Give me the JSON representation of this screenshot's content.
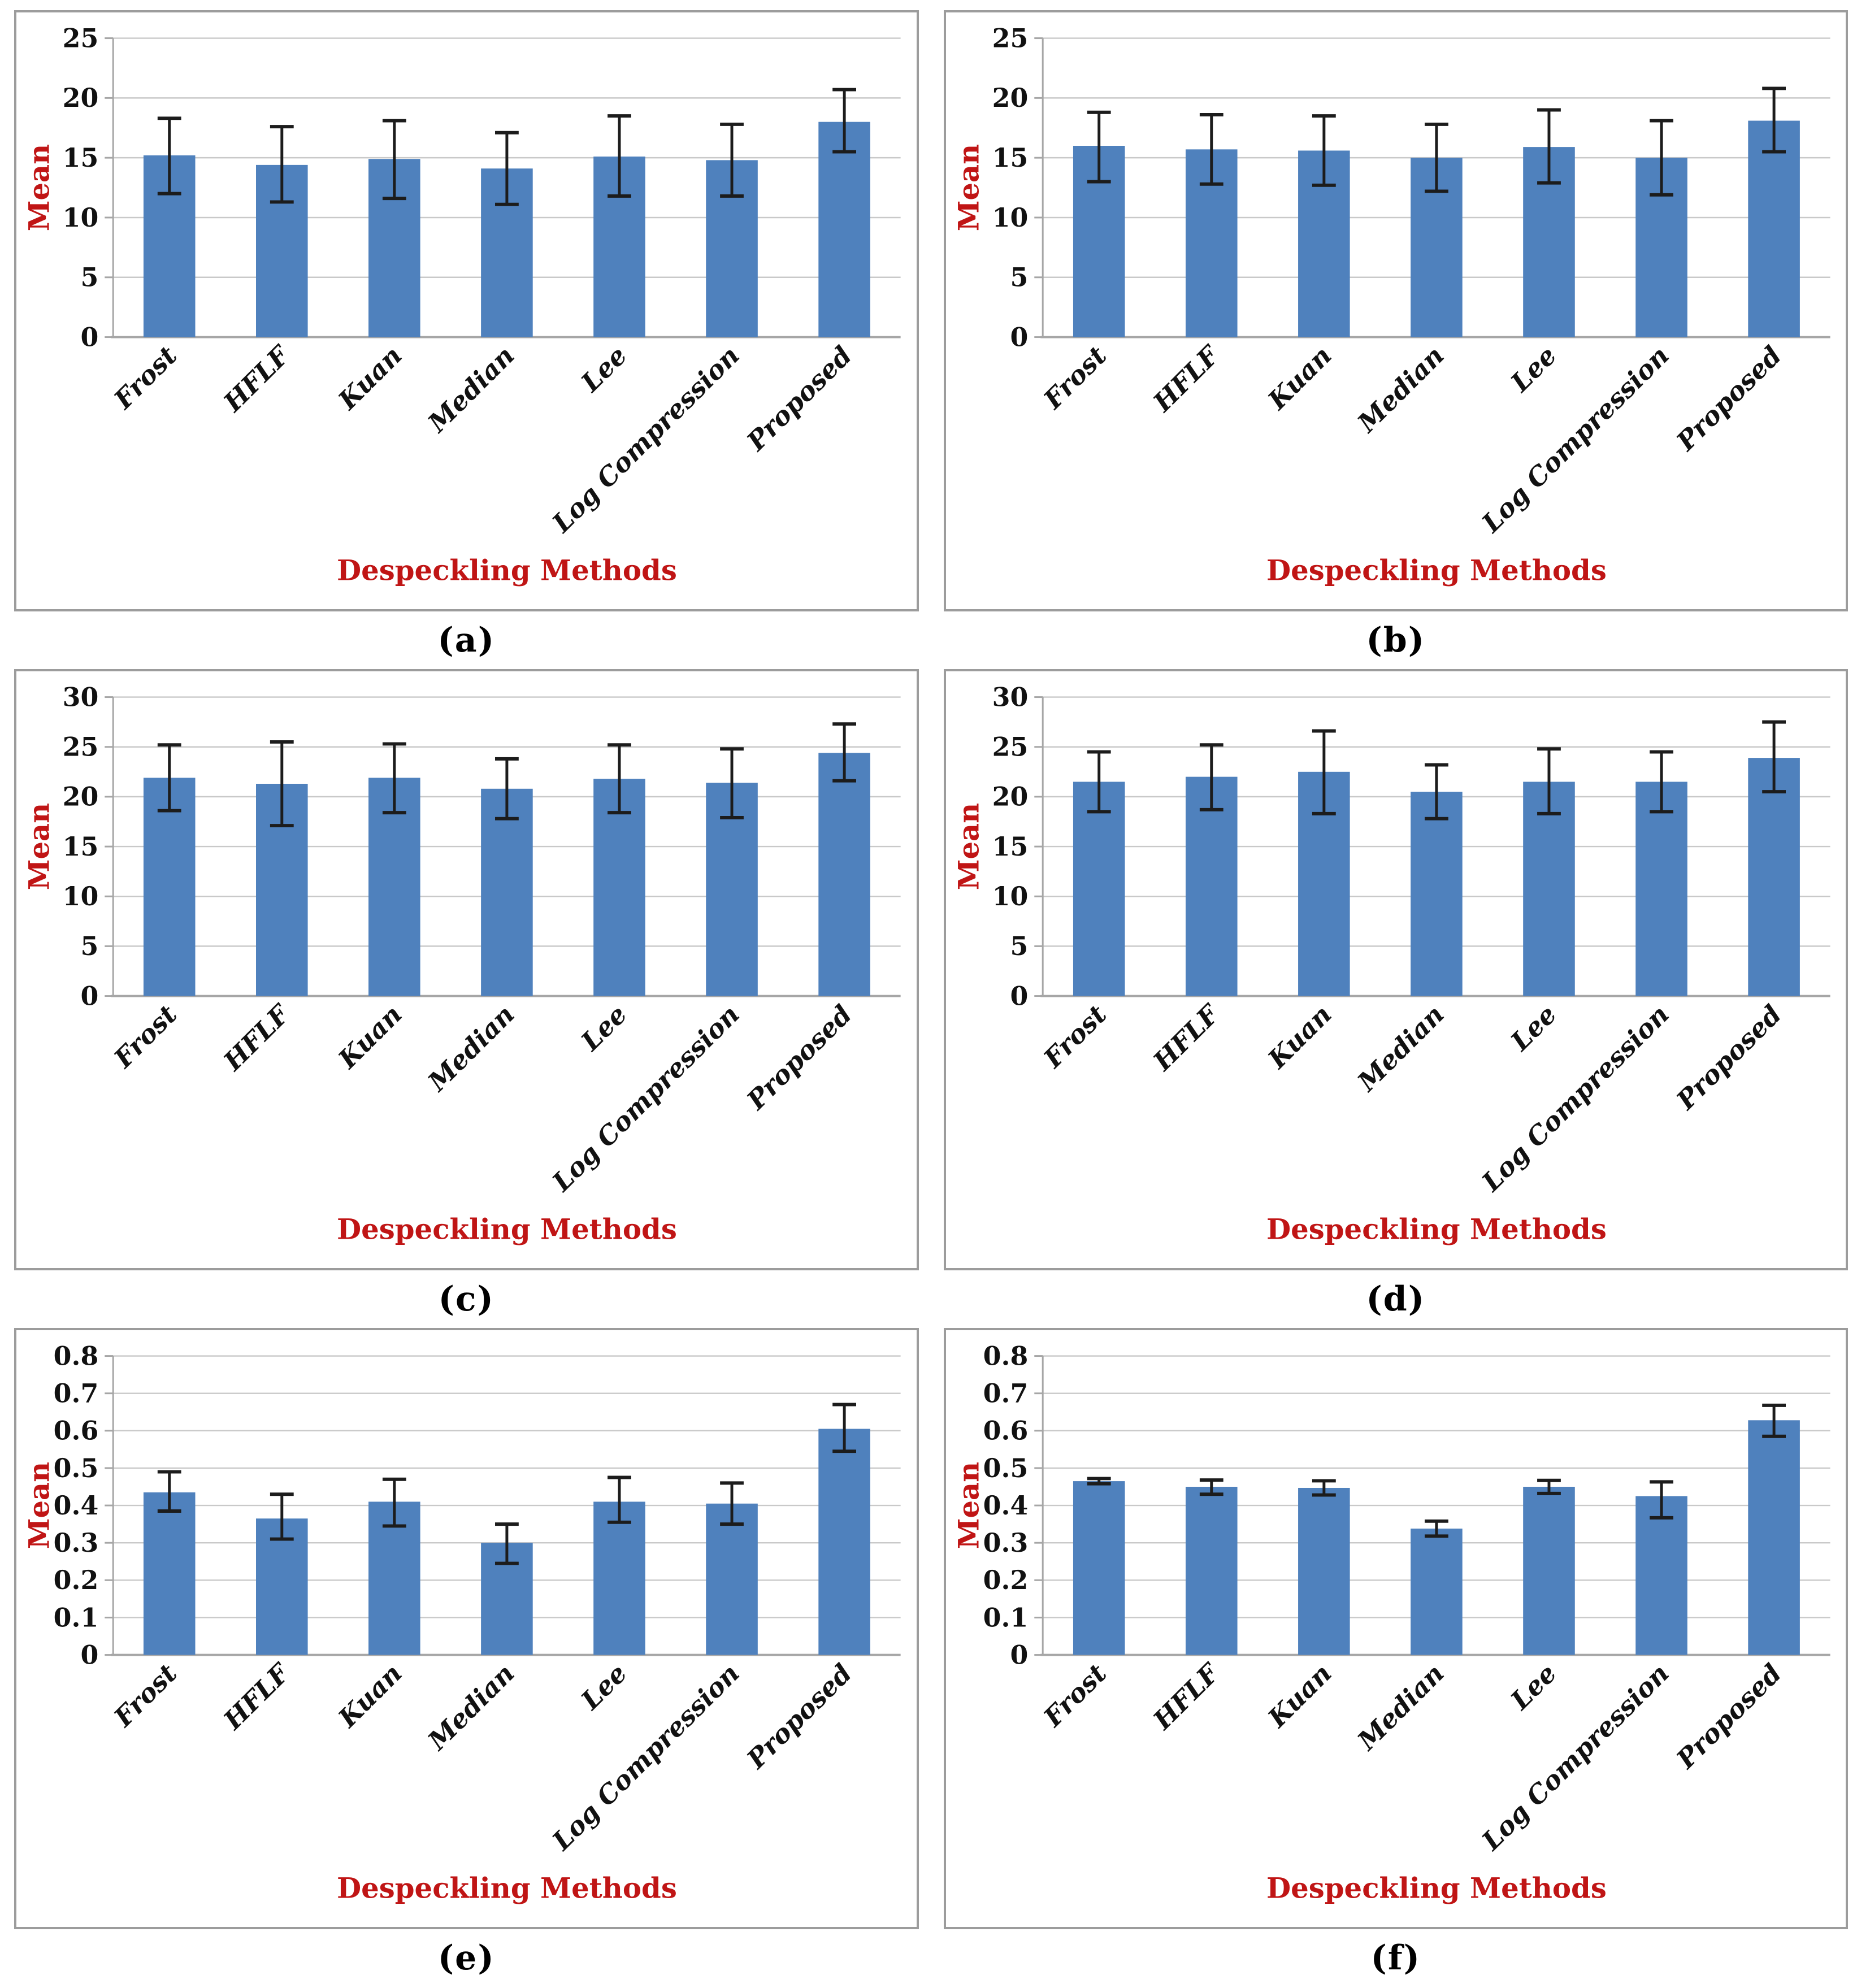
{
  "palette": {
    "bar": "#4f81bd",
    "error_bar": "#1c1c1c",
    "gridline": "#c9c9c9",
    "axis_line": "#a6a6a6",
    "tick_text": "#111111",
    "axis_title_red": "#c01515",
    "panel_border": "#9c9c9c",
    "background": "#ffffff"
  },
  "figure": {
    "layout": "2x3 grid of bar chart panels",
    "captions": [
      "(a)",
      "(b)",
      "(c)",
      "(d)",
      "(e)",
      "(f)"
    ]
  },
  "chart_data": [
    {
      "id": "a",
      "caption": "(a)",
      "type": "bar",
      "title": "",
      "xlabel": "Despeckling Methods",
      "ylabel": "Mean",
      "categories": [
        "Frost",
        "HFLF",
        "Kuan",
        "Median",
        "Lee",
        "Log Compression",
        "Proposed"
      ],
      "values": [
        15.2,
        14.4,
        14.9,
        14.1,
        15.1,
        14.8,
        18.0
      ],
      "error_low": [
        12.0,
        11.3,
        11.6,
        11.1,
        11.8,
        11.8,
        15.5
      ],
      "error_high": [
        18.3,
        17.6,
        18.1,
        17.1,
        18.5,
        17.8,
        20.7
      ],
      "ylim": [
        0,
        25
      ],
      "ytick_step": 5,
      "grid": true,
      "legend": false
    },
    {
      "id": "b",
      "caption": "(b)",
      "type": "bar",
      "title": "",
      "xlabel": "Despeckling Methods",
      "ylabel": "Mean",
      "categories": [
        "Frost",
        "HFLF",
        "Kuan",
        "Median",
        "Lee",
        "Log Compression",
        "Proposed"
      ],
      "values": [
        16.0,
        15.7,
        15.6,
        15.0,
        15.9,
        15.0,
        18.1
      ],
      "error_low": [
        13.0,
        12.8,
        12.7,
        12.2,
        12.9,
        11.9,
        15.5
      ],
      "error_high": [
        18.8,
        18.6,
        18.5,
        17.8,
        19.0,
        18.1,
        20.8
      ],
      "ylim": [
        0,
        25
      ],
      "ytick_step": 5,
      "grid": true,
      "legend": false
    },
    {
      "id": "c",
      "caption": "(c)",
      "type": "bar",
      "title": "",
      "xlabel": "Despeckling Methods",
      "ylabel": "Mean",
      "categories": [
        "Frost",
        "HFLF",
        "Kuan",
        "Median",
        "Lee",
        "Log Compression",
        "Proposed"
      ],
      "values": [
        21.9,
        21.3,
        21.9,
        20.8,
        21.8,
        21.4,
        24.4
      ],
      "error_low": [
        18.6,
        17.1,
        18.4,
        17.8,
        18.4,
        17.9,
        21.6
      ],
      "error_high": [
        25.2,
        25.5,
        25.3,
        23.8,
        25.2,
        24.8,
        27.3
      ],
      "ylim": [
        0,
        30
      ],
      "ytick_step": 5,
      "grid": true,
      "legend": false
    },
    {
      "id": "d",
      "caption": "(d)",
      "type": "bar",
      "title": "",
      "xlabel": "Despeckling Methods",
      "ylabel": "Mean",
      "categories": [
        "Frost",
        "HFLF",
        "Kuan",
        "Median",
        "Lee",
        "Log Compression",
        "Proposed"
      ],
      "values": [
        21.5,
        22.0,
        22.5,
        20.5,
        21.5,
        21.5,
        23.9
      ],
      "error_low": [
        18.5,
        18.7,
        18.3,
        17.8,
        18.3,
        18.5,
        20.5
      ],
      "error_high": [
        24.5,
        25.2,
        26.6,
        23.2,
        24.8,
        24.5,
        27.5
      ],
      "ylim": [
        0,
        30
      ],
      "ytick_step": 5,
      "grid": true,
      "legend": false
    },
    {
      "id": "e",
      "caption": "(e)",
      "type": "bar",
      "title": "",
      "xlabel": "Despeckling Methods",
      "ylabel": "Mean",
      "categories": [
        "Frost",
        "HFLF",
        "Kuan",
        "Median",
        "Lee",
        "Log Compression",
        "Proposed"
      ],
      "values": [
        0.435,
        0.365,
        0.41,
        0.3,
        0.41,
        0.405,
        0.605
      ],
      "error_low": [
        0.385,
        0.31,
        0.345,
        0.245,
        0.355,
        0.35,
        0.545
      ],
      "error_high": [
        0.49,
        0.43,
        0.47,
        0.35,
        0.475,
        0.46,
        0.67
      ],
      "ylim": [
        0,
        0.8
      ],
      "ytick_step": 0.1,
      "grid": true,
      "legend": false
    },
    {
      "id": "f",
      "caption": "(f)",
      "type": "bar",
      "title": "",
      "xlabel": "Despeckling Methods",
      "ylabel": "Mean",
      "categories": [
        "Frost",
        "HFLF",
        "Kuan",
        "Median",
        "Lee",
        "Log Compression",
        "Proposed"
      ],
      "values": [
        0.465,
        0.45,
        0.447,
        0.338,
        0.45,
        0.425,
        0.628
      ],
      "error_low": [
        0.458,
        0.43,
        0.428,
        0.318,
        0.432,
        0.367,
        0.585
      ],
      "error_high": [
        0.472,
        0.468,
        0.466,
        0.358,
        0.467,
        0.463,
        0.668
      ],
      "ylim": [
        0,
        0.8
      ],
      "ytick_step": 0.1,
      "grid": true,
      "legend": false
    }
  ]
}
